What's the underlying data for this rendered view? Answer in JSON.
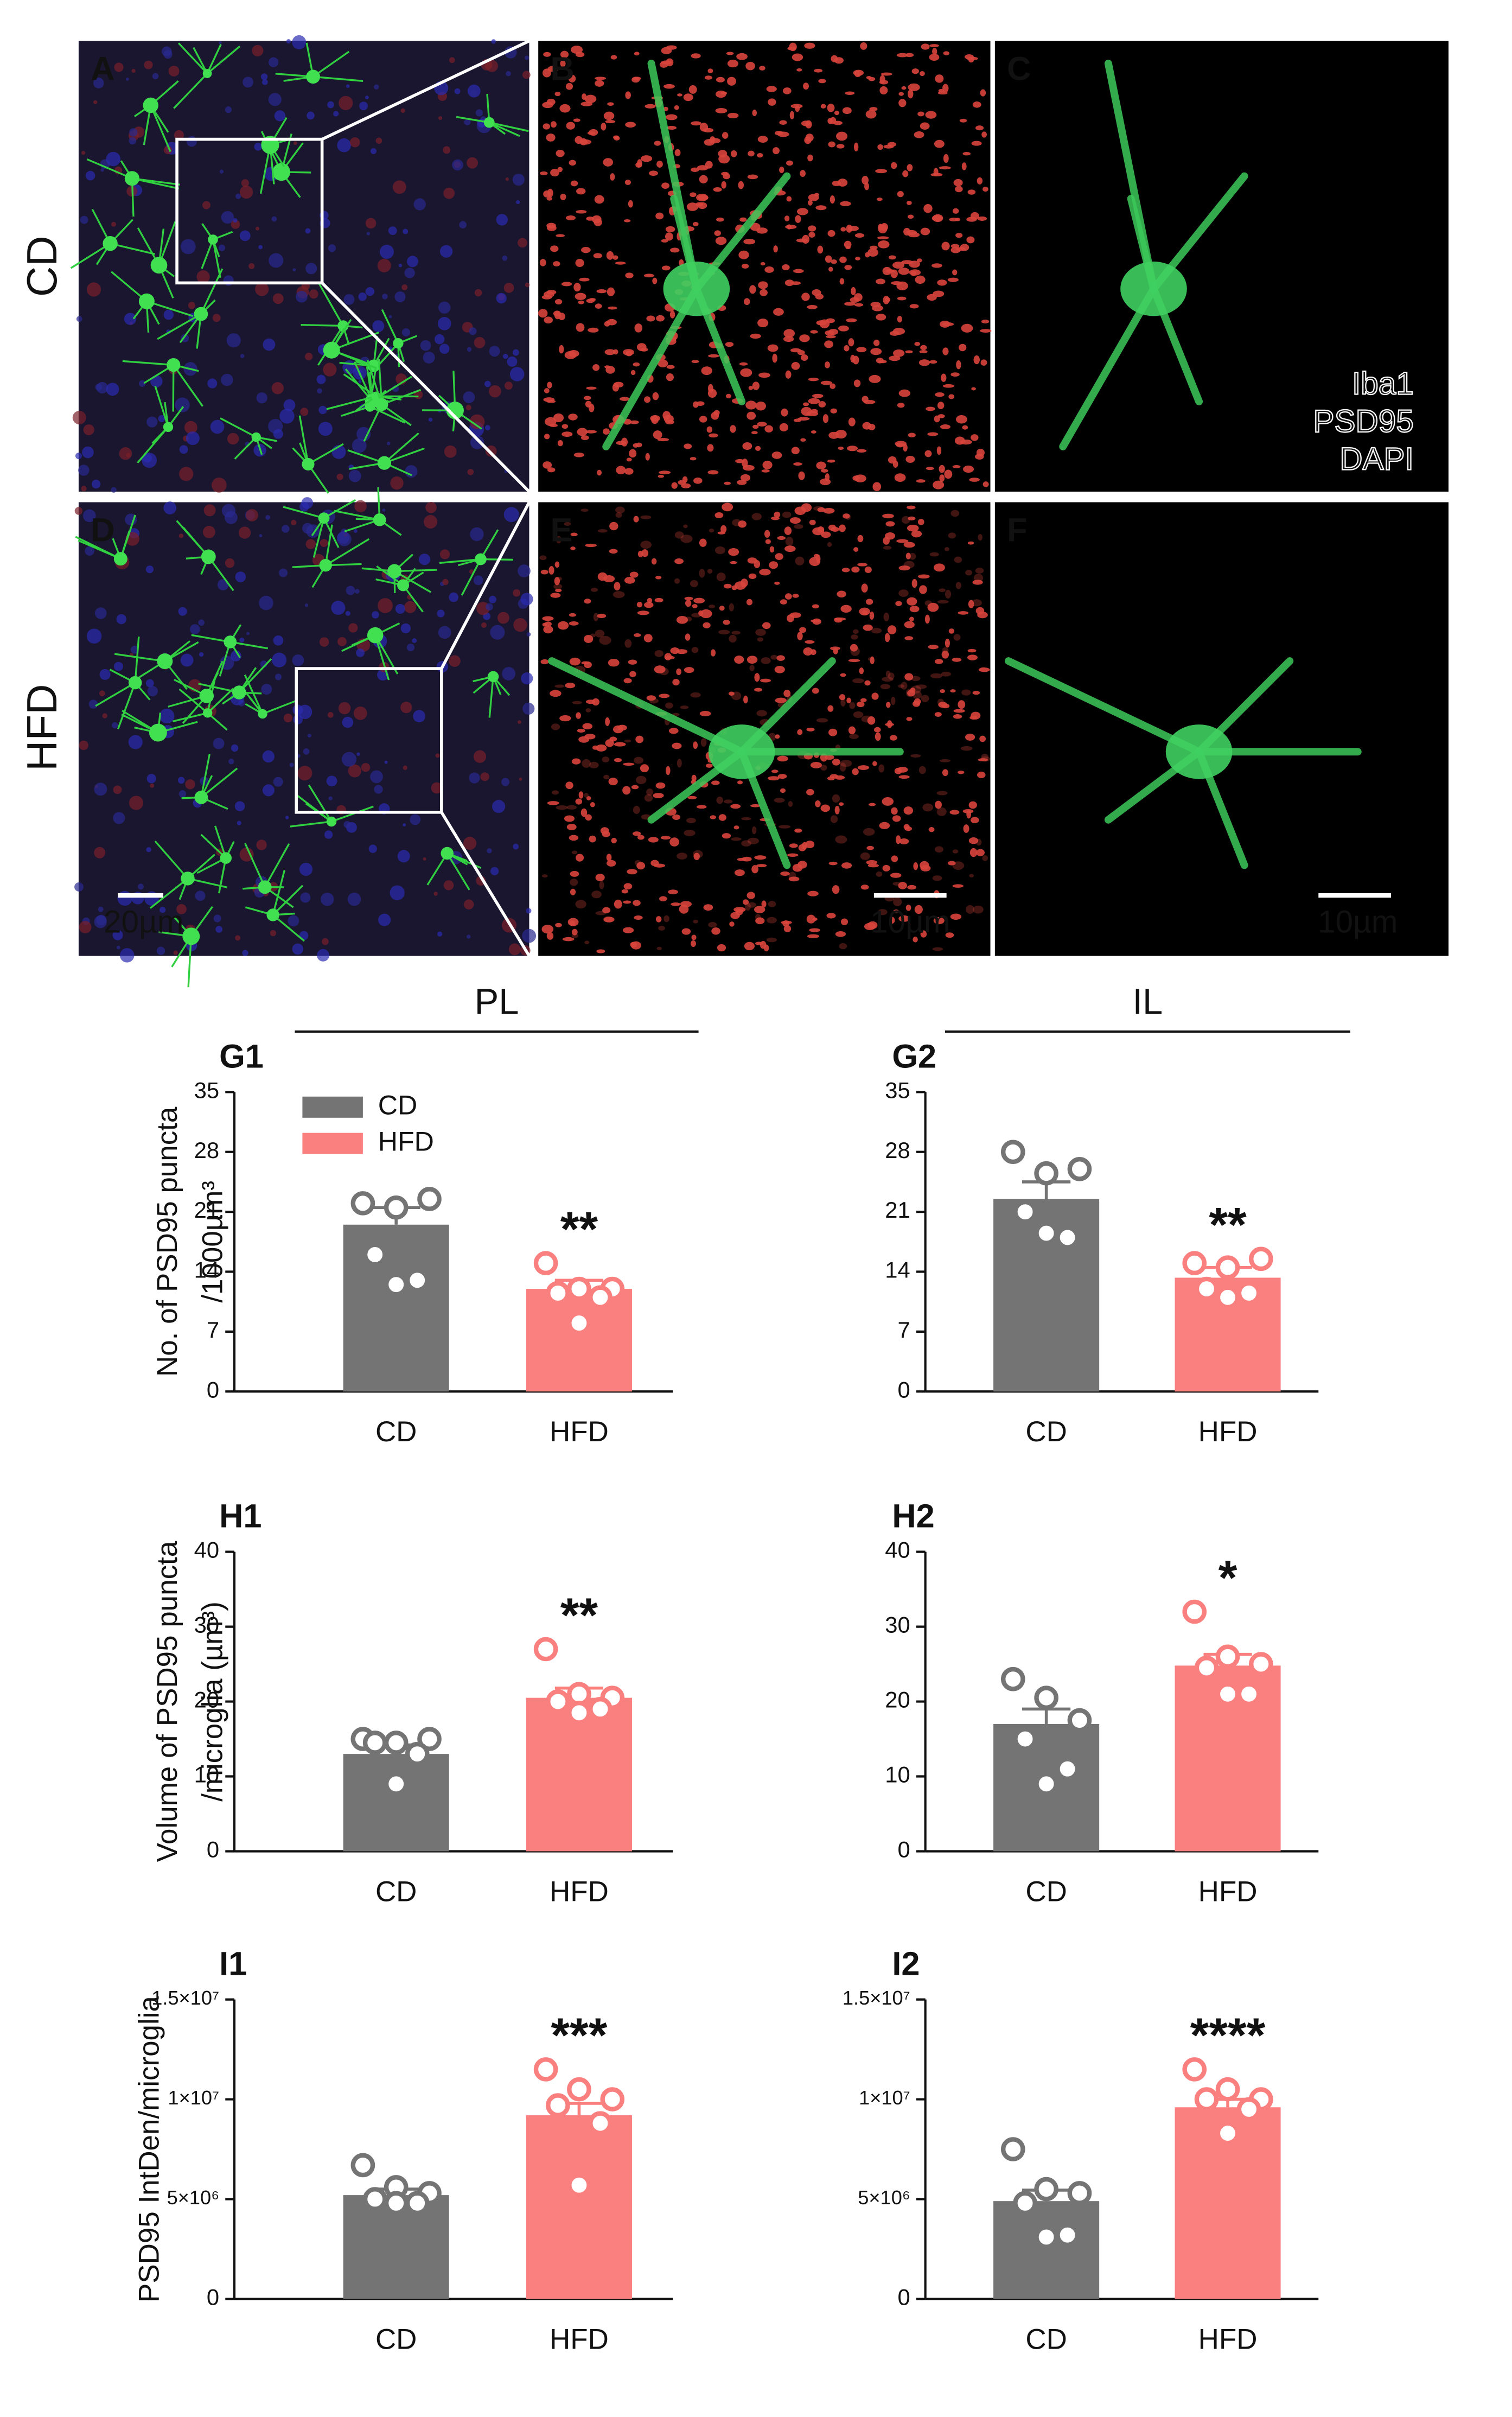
{
  "figure": {
    "row_labels": [
      "CD",
      "HFD"
    ],
    "panel_labels": [
      "A",
      "B",
      "C",
      "D",
      "E",
      "F"
    ],
    "channel_legend": [
      {
        "name": "Iba1",
        "color": "#2fd05a"
      },
      {
        "name": "PSD95",
        "color": "#e0452f"
      },
      {
        "name": "DAPI",
        "color": "#2a2ae6"
      }
    ],
    "scale_bars": [
      "20µm",
      "10µm",
      "10µm"
    ],
    "group_headers": [
      "PL",
      "IL"
    ]
  },
  "chart_data": [
    {
      "type": "bar",
      "panel": "G1",
      "ylabel": [
        "No. of PSD95 puncta",
        "/1000µm³"
      ],
      "categories": [
        "CD",
        "HFD"
      ],
      "values": [
        19.5,
        12
      ],
      "errors": [
        2,
        1
      ],
      "points": [
        [
          22,
          21.5,
          22.5,
          16,
          13,
          12.5
        ],
        [
          15,
          12,
          12,
          11.5,
          11,
          8
        ]
      ],
      "colors": [
        "#747474",
        "#fa7f7f"
      ],
      "annotation": "**",
      "legend": "upper left",
      "ylim": [
        0,
        35
      ],
      "yticks": [
        0,
        7,
        14,
        21,
        28,
        35
      ]
    },
    {
      "type": "bar",
      "panel": "G2",
      "categories": [
        "CD",
        "HFD"
      ],
      "values": [
        22.5,
        13.3
      ],
      "errors": [
        2,
        1.2
      ],
      "points": [
        [
          28,
          25.5,
          26,
          21,
          18,
          18.5
        ],
        [
          15,
          14.5,
          15.5,
          12,
          11.5,
          11
        ]
      ],
      "colors": [
        "#747474",
        "#fa7f7f"
      ],
      "annotation": "**",
      "ylim": [
        0,
        35
      ],
      "yticks": [
        0,
        7,
        14,
        21,
        28,
        35
      ]
    },
    {
      "type": "bar",
      "panel": "H1",
      "ylabel": [
        "Volume of PSD95 puncta",
        "/microglia (µm³)"
      ],
      "categories": [
        "CD",
        "HFD"
      ],
      "values": [
        13,
        20.5
      ],
      "errors": [
        1.2,
        1.3
      ],
      "points": [
        [
          15,
          14.5,
          15,
          14.5,
          13,
          9
        ],
        [
          27,
          21,
          20.5,
          20,
          19,
          18.5
        ]
      ],
      "colors": [
        "#747474",
        "#fa7f7f"
      ],
      "annotation": "**",
      "ylim": [
        0,
        40
      ],
      "yticks": [
        0,
        10,
        20,
        30,
        40
      ]
    },
    {
      "type": "bar",
      "panel": "H2",
      "categories": [
        "CD",
        "HFD"
      ],
      "values": [
        17,
        24.8
      ],
      "errors": [
        2,
        1.5
      ],
      "points": [
        [
          23,
          20.5,
          17.5,
          15,
          11,
          9
        ],
        [
          32,
          26,
          25,
          24.5,
          21,
          21
        ]
      ],
      "colors": [
        "#747474",
        "#fa7f7f"
      ],
      "annotation": "*",
      "ylim": [
        0,
        40
      ],
      "yticks": [
        0,
        10,
        20,
        30,
        40
      ]
    },
    {
      "type": "bar",
      "panel": "I1",
      "ylabel": [
        "PSD95 IntDen/microglia"
      ],
      "categories": [
        "CD",
        "HFD"
      ],
      "values": [
        5200000,
        9200000
      ],
      "errors": [
        300000,
        600000
      ],
      "points": [
        [
          6700000,
          5600000,
          5300000,
          5000000,
          4800000,
          4800000
        ],
        [
          11500000,
          10500000,
          10000000,
          9700000,
          8800000,
          5700000
        ]
      ],
      "colors": [
        "#747474",
        "#fa7f7f"
      ],
      "annotation": "***",
      "ylim": [
        0,
        15000000
      ],
      "yticks": [
        0,
        {
          "value": 5000000,
          "label": "5×10⁶"
        },
        {
          "value": 10000000,
          "label": "1×10⁷"
        },
        {
          "value": 15000000,
          "label": "1.5×10⁷"
        }
      ]
    },
    {
      "type": "bar",
      "panel": "I2",
      "categories": [
        "CD",
        "HFD"
      ],
      "values": [
        4900000,
        9600000
      ],
      "errors": [
        550000,
        400000
      ],
      "points": [
        [
          7500000,
          5500000,
          5300000,
          4800000,
          3200000,
          3100000
        ],
        [
          11500000,
          10500000,
          10000000,
          10000000,
          9500000,
          8300000
        ]
      ],
      "colors": [
        "#747474",
        "#fa7f7f"
      ],
      "annotation": "****",
      "ylim": [
        0,
        15000000
      ],
      "yticks": [
        0,
        {
          "value": 5000000,
          "label": "5×10⁶"
        },
        {
          "value": 10000000,
          "label": "1×10⁷"
        },
        {
          "value": 15000000,
          "label": "1.5×10⁷"
        }
      ]
    }
  ]
}
